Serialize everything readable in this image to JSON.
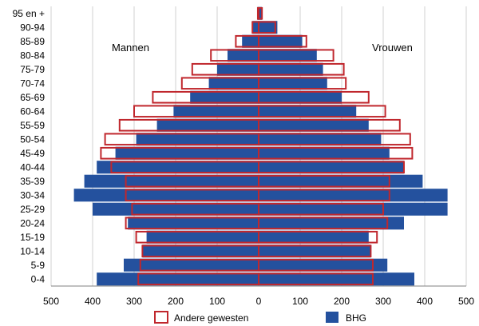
{
  "chart_data": {
    "type": "bar",
    "orientation": "horizontal",
    "layout": "population-pyramid",
    "grid": true,
    "legend_position": "bottom",
    "categories": [
      "0-4",
      "5-9",
      "10-14",
      "15-19",
      "20-24",
      "25-29",
      "30-34",
      "35-39",
      "40-44",
      "45-49",
      "50-54",
      "55-59",
      "60-64",
      "65-69",
      "70-74",
      "75-79",
      "80-84",
      "85-89",
      "90-94",
      "95 en +"
    ],
    "xlim": [
      -500,
      500
    ],
    "x_ticks": [
      "500",
      "400",
      "300",
      "200",
      "100",
      "0",
      "100",
      "200",
      "300",
      "400",
      "500"
    ],
    "side_labels": {
      "left": "Mannen",
      "right": "Vrouwen"
    },
    "series": [
      {
        "name": "BHG",
        "style": "filled",
        "color": "#24519E",
        "left": [
          390,
          325,
          280,
          270,
          315,
          400,
          445,
          420,
          390,
          345,
          295,
          245,
          205,
          165,
          120,
          100,
          75,
          40,
          15,
          3
        ],
        "right": [
          375,
          310,
          270,
          265,
          350,
          455,
          455,
          395,
          350,
          315,
          295,
          265,
          235,
          200,
          165,
          155,
          140,
          105,
          45,
          8
        ]
      },
      {
        "name": "Andere gewesten",
        "style": "outline",
        "color": "#C0272D",
        "left": [
          290,
          285,
          280,
          295,
          320,
          305,
          320,
          320,
          355,
          380,
          370,
          335,
          300,
          255,
          185,
          160,
          115,
          55,
          15,
          2
        ],
        "right": [
          275,
          275,
          270,
          285,
          310,
          300,
          315,
          315,
          350,
          370,
          365,
          340,
          305,
          265,
          210,
          205,
          180,
          115,
          40,
          8
        ]
      }
    ]
  },
  "legend": [
    {
      "label": "Andere gewesten",
      "style": "outline",
      "color": "#C0272D"
    },
    {
      "label": "BHG",
      "style": "filled",
      "color": "#24519E"
    }
  ]
}
